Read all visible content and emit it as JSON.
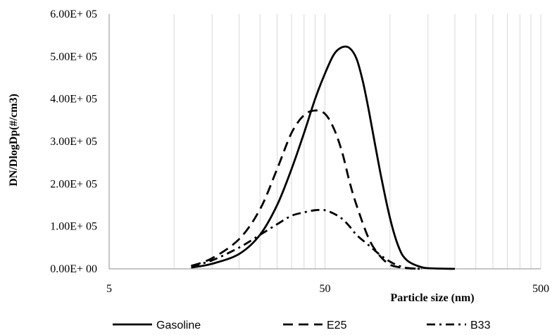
{
  "chart_data": {
    "type": "line",
    "xscale": "log",
    "xlim": [
      5,
      500
    ],
    "ylim": [
      0,
      600000
    ],
    "xlabel": "Particle size (nm)",
    "ylabel": "DN/DlogDp(#/cm3)",
    "xticks": [
      5,
      50,
      500
    ],
    "xtick_labels": [
      "5",
      "50",
      "500"
    ],
    "yticks": [
      0,
      100000,
      200000,
      300000,
      400000,
      500000,
      600000
    ],
    "ytick_labels": [
      "0.00E+ 00",
      "1.00E+ 05",
      "2.00E+ 05",
      "3.00E+ 05",
      "4.00E+ 05",
      "5.00E+ 05",
      "6.00E+ 05"
    ],
    "grid": {
      "vertical_minor": true,
      "horizontal": false
    },
    "legend_position": "bottom",
    "series": [
      {
        "name": "Gasoline",
        "style": "solid",
        "color": "#000000",
        "x": [
          12,
          15,
          20,
          25,
          30,
          35,
          40,
          45,
          50,
          55,
          60,
          65,
          70,
          75,
          80,
          90,
          100,
          110,
          120,
          140,
          160,
          200
        ],
        "y": [
          3000,
          12000,
          35000,
          80000,
          150000,
          235000,
          320000,
          400000,
          460000,
          505000,
          522000,
          520000,
          495000,
          440000,
          370000,
          230000,
          120000,
          50000,
          20000,
          4000,
          1000,
          0
        ]
      },
      {
        "name": "E25",
        "style": "dashed",
        "color": "#000000",
        "x": [
          12,
          15,
          20,
          25,
          30,
          35,
          40,
          45,
          50,
          55,
          60,
          65,
          70,
          80,
          90,
          100,
          110,
          120,
          140
        ],
        "y": [
          7000,
          25000,
          70000,
          140000,
          235000,
          320000,
          362000,
          373000,
          365000,
          330000,
          275000,
          205000,
          150000,
          70000,
          30000,
          10000,
          4000,
          1500,
          0
        ]
      },
      {
        "name": "B33",
        "style": "dashdot",
        "color": "#000000",
        "x": [
          12,
          15,
          20,
          25,
          30,
          35,
          40,
          45,
          50,
          55,
          60,
          65,
          70,
          80,
          90,
          100,
          110,
          120,
          140
        ],
        "y": [
          6000,
          20000,
          50000,
          80000,
          105000,
          125000,
          133000,
          138000,
          138000,
          130000,
          118000,
          100000,
          80000,
          55000,
          33000,
          17000,
          7000,
          2000,
          0
        ]
      }
    ]
  }
}
